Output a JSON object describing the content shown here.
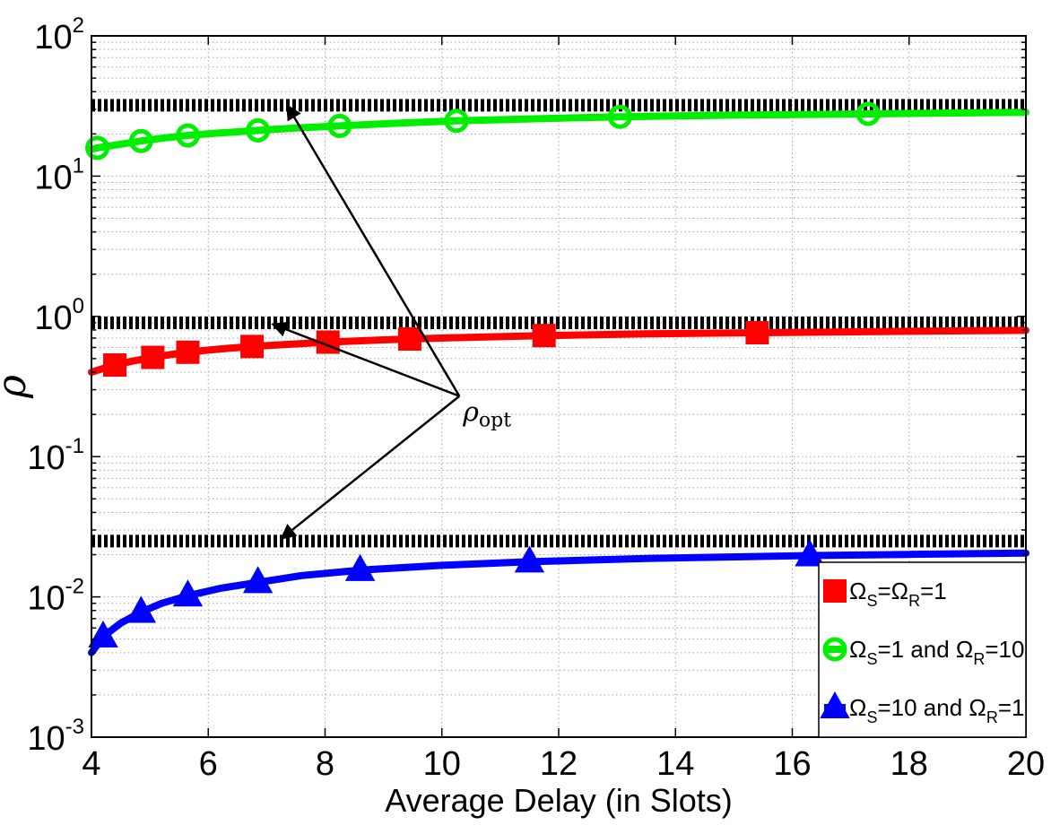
{
  "chart_data": {
    "type": "line",
    "title": "",
    "xlabel": "Average Delay (in Slots)",
    "ylabel": "ρ",
    "y_scale": "log",
    "xlim": [
      4,
      20
    ],
    "ylim": [
      0.001,
      100
    ],
    "x_ticks": [
      "4",
      "6",
      "8",
      "10",
      "12",
      "14",
      "16",
      "18",
      "20"
    ],
    "y_ticks": [
      {
        "base": "10",
        "exp": "-3",
        "value": 0.001
      },
      {
        "base": "10",
        "exp": "-2",
        "value": 0.01
      },
      {
        "base": "10",
        "exp": "-1",
        "value": 0.1
      },
      {
        "base": "10",
        "exp": "0",
        "value": 1
      },
      {
        "base": "10",
        "exp": "1",
        "value": 10
      },
      {
        "base": "10",
        "exp": "2",
        "value": 100
      }
    ],
    "grid": true,
    "legend_position": "bottom-right",
    "series": [
      {
        "key": "red",
        "legend_parts": [
          "Ω",
          "S",
          "=Ω",
          "R",
          "=1"
        ],
        "color": "#ff0000",
        "marker": "square",
        "curve_x": [
          4.0,
          4.2,
          4.4,
          4.7,
          5.0,
          5.3,
          5.65,
          6.0,
          6.3,
          6.75,
          7.3,
          8.05,
          9.0,
          9.45,
          10.5,
          11.75,
          13.5,
          15.4,
          17.5,
          20.0
        ],
        "curve_y": [
          0.4,
          0.425,
          0.45,
          0.48,
          0.505,
          0.53,
          0.555,
          0.575,
          0.59,
          0.61,
          0.63,
          0.655,
          0.68,
          0.69,
          0.71,
          0.73,
          0.75,
          0.765,
          0.78,
          0.795
        ],
        "markers_x": [
          4.4,
          5.05,
          5.65,
          6.75,
          8.05,
          9.45,
          11.75,
          15.4
        ],
        "markers_y": [
          0.45,
          0.51,
          0.555,
          0.61,
          0.655,
          0.69,
          0.73,
          0.765
        ],
        "opt_value": 0.9
      },
      {
        "key": "green",
        "legend_parts": [
          "Ω",
          "S",
          "=1 and Ω",
          "R",
          "=10"
        ],
        "color": "#00ee00",
        "marker": "circle",
        "curve_x": [
          4.0,
          4.1,
          4.5,
          4.85,
          5.2,
          5.65,
          6.2,
          6.85,
          7.5,
          8.25,
          9.2,
          10.25,
          11.5,
          13.05,
          15.0,
          17.3,
          20.0
        ],
        "curve_y": [
          15.5,
          15.9,
          16.9,
          17.8,
          18.6,
          19.5,
          20.3,
          21.2,
          22.0,
          22.8,
          23.8,
          24.8,
          25.6,
          26.5,
          27.2,
          27.8,
          28.5
        ],
        "markers_x": [
          4.1,
          4.85,
          5.65,
          6.85,
          8.25,
          10.25,
          13.05,
          17.3
        ],
        "markers_y": [
          15.9,
          17.8,
          19.5,
          21.2,
          22.8,
          24.8,
          26.5,
          27.8
        ],
        "opt_value": 32
      },
      {
        "key": "blue",
        "legend_parts": [
          "Ω",
          "S",
          "=10 and Ω",
          "R",
          "=1"
        ],
        "color": "#0000ff",
        "marker": "triangle",
        "curve_x": [
          4.0,
          4.2,
          4.5,
          4.85,
          5.2,
          5.65,
          6.2,
          6.85,
          7.6,
          8.6,
          10.0,
          11.5,
          13.5,
          16.3,
          18.0,
          20.0
        ],
        "curve_y": [
          0.004,
          0.0052,
          0.0065,
          0.0078,
          0.009,
          0.0102,
          0.0115,
          0.0127,
          0.0142,
          0.0155,
          0.0168,
          0.0178,
          0.0188,
          0.0197,
          0.0201,
          0.0205
        ],
        "markers_x": [
          4.2,
          4.85,
          5.65,
          6.85,
          8.6,
          11.5,
          16.3
        ],
        "markers_y": [
          0.0052,
          0.0078,
          0.0102,
          0.0127,
          0.0155,
          0.0178,
          0.0197
        ],
        "opt_value": 0.025
      }
    ],
    "annotation": {
      "symbol": "ρ",
      "subscript": "opt",
      "origin": {
        "x": 10.3,
        "y": 0.27
      },
      "targets": [
        {
          "x": 7.35,
          "y": 32
        },
        {
          "x": 7.1,
          "y": 0.88
        },
        {
          "x": 7.25,
          "y": 0.026
        }
      ]
    }
  }
}
